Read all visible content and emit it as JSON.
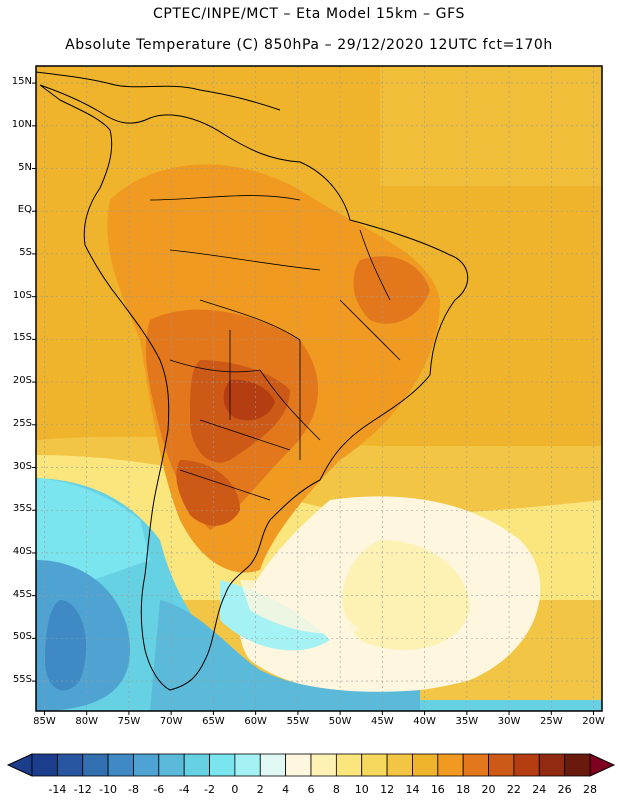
{
  "header": {
    "line1": "CPTEC/INPE/MCT –  Eta Model 15km – GFS",
    "line2": "Absolute Temperature (C) 850hPa – 29/12/2020 12UTC fct=170h"
  },
  "axes": {
    "lat_labels": [
      "15N",
      "10N",
      "5N",
      "EQ",
      "5S",
      "10S",
      "15S",
      "20S",
      "25S",
      "30S",
      "35S",
      "40S",
      "45S",
      "50S",
      "55S"
    ],
    "lon_labels": [
      "85W",
      "80W",
      "75W",
      "70W",
      "65W",
      "60W",
      "55W",
      "50W",
      "45W",
      "40W",
      "35W",
      "30W",
      "25W",
      "20W"
    ]
  },
  "colorbar": {
    "labels": [
      "-14",
      "-12",
      "-10",
      "-8",
      "-6",
      "-4",
      "-2",
      "0",
      "2",
      "4",
      "6",
      "8",
      "10",
      "12",
      "14",
      "16",
      "18",
      "20",
      "22",
      "24",
      "26",
      "28"
    ],
    "colors": [
      "#1c3c8c",
      "#27559f",
      "#3370b2",
      "#3f8ac4",
      "#4ea3d2",
      "#5bbad9",
      "#67d1e4",
      "#7ae4ef",
      "#a5f2f5",
      "#e0f7f3",
      "#fef6de",
      "#fdf1b4",
      "#fbe67e",
      "#f6d85e",
      "#f2c545",
      "#efb42b",
      "#f19a21",
      "#e2781b",
      "#cc5916",
      "#b43d12",
      "#902a10",
      "#6a1a0d"
    ]
  },
  "chart_data": {
    "type": "heatmap",
    "title": "Absolute Temperature (C) 850hPa – 29/12/2020 12UTC fct=170h",
    "subtitle": "CPTEC/INPE/MCT – Eta Model 15km – GFS",
    "variable": "Absolute Temperature",
    "units": "C",
    "level": "850hPa",
    "run": "29/12/2020 12UTC",
    "forecast_hour": "fct=170h",
    "xlim": [
      -86,
      -19
    ],
    "ylim": [
      -58.5,
      17
    ],
    "x_ticks": [
      -85,
      -80,
      -75,
      -70,
      -65,
      -60,
      -55,
      -50,
      -45,
      -40,
      -35,
      -30,
      -25,
      -20
    ],
    "y_ticks": [
      15,
      10,
      5,
      0,
      -5,
      -10,
      -15,
      -20,
      -25,
      -30,
      -35,
      -40,
      -45,
      -50,
      -55
    ],
    "color_levels": [
      -14,
      -12,
      -10,
      -8,
      -6,
      -4,
      -2,
      0,
      2,
      4,
      6,
      8,
      10,
      12,
      14,
      16,
      18,
      20,
      22,
      24,
      26,
      28
    ],
    "regions": [
      {
        "name": "tropical Atlantic and northern South America",
        "approx_temp_c": 18
      },
      {
        "name": "Amazon interior",
        "approx_temp_c": 20
      },
      {
        "name": "Chaco / Paraguay / northern Argentina",
        "approx_temp_c": 24
      },
      {
        "name": "south Atlantic near 30S",
        "approx_temp_c": 12
      },
      {
        "name": "southern Patagonia shelf",
        "approx_temp_c": 7
      },
      {
        "name": "Pacific off Chile and Drake passage",
        "approx_temp_c": 2
      }
    ]
  }
}
